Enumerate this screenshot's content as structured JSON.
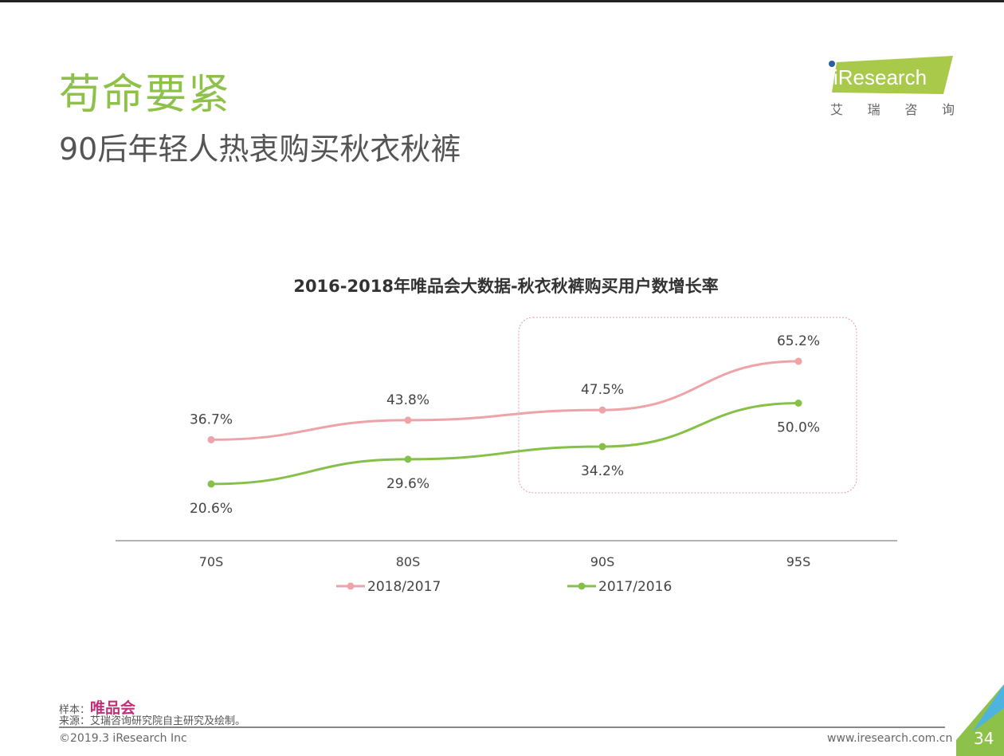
{
  "header": {
    "title": "苟命要紧",
    "subtitle": "90后年轻人热衷购买秋衣秋裤"
  },
  "logo": {
    "text": "iResearch",
    "sub": [
      "艾",
      "瑞",
      "咨",
      "询"
    ]
  },
  "chart_data": {
    "type": "line",
    "title": "2016-2018年唯品会大数据-秋衣秋裤购买用户数增长率",
    "categories": [
      "70S",
      "80S",
      "90S",
      "95S"
    ],
    "series": [
      {
        "name": "2018/2017",
        "color": "#eea3a8",
        "values": [
          36.7,
          43.8,
          47.5,
          65.2
        ],
        "labels": [
          "36.7%",
          "43.8%",
          "47.5%",
          "65.2%"
        ]
      },
      {
        "name": "2017/2016",
        "color": "#86c048",
        "values": [
          20.6,
          29.6,
          34.2,
          50.0
        ],
        "labels": [
          "20.6%",
          "29.6%",
          "34.2%",
          "50.0%"
        ]
      }
    ],
    "ylim": [
      0,
      75
    ],
    "legend": "bottom",
    "highlight": [
      "90S",
      "95S"
    ]
  },
  "footer": {
    "sample_label": "样本：",
    "sample_brand": "唯品会",
    "source": "来源：艾瑞咨询研究院自主研究及绘制。",
    "copyright": "©2019.3 iResearch Inc",
    "url": "www.iresearch.com.cn",
    "page": "34"
  }
}
